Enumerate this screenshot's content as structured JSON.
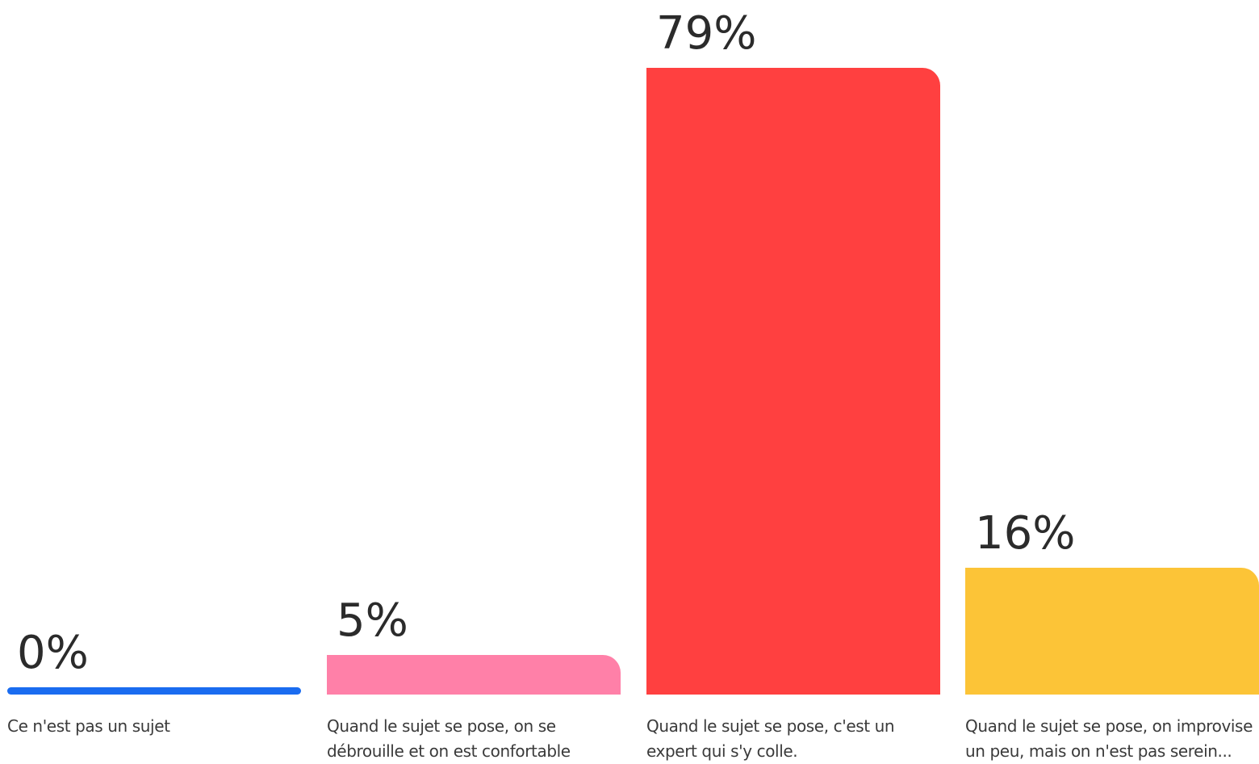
{
  "chart_data": {
    "type": "bar",
    "title": "",
    "xlabel": "",
    "ylabel": "",
    "ylim": [
      0,
      79
    ],
    "grid": false,
    "legend": "none",
    "categories": [
      "Ce n'est pas un sujet",
      "Quand le sujet se pose, on se débrouille et on est confortable",
      "Quand le sujet se pose, c'est un expert qui s'y colle.",
      "Quand le sujet se pose, on improvise un peu, mais on n'est pas serein..."
    ],
    "values": [
      0,
      5,
      79,
      16
    ],
    "value_labels": [
      "0%",
      "5%",
      "79%",
      "16%"
    ],
    "colors": [
      "#1a6cf0",
      "#ff80a8",
      "#ff4040",
      "#fcc437"
    ]
  }
}
